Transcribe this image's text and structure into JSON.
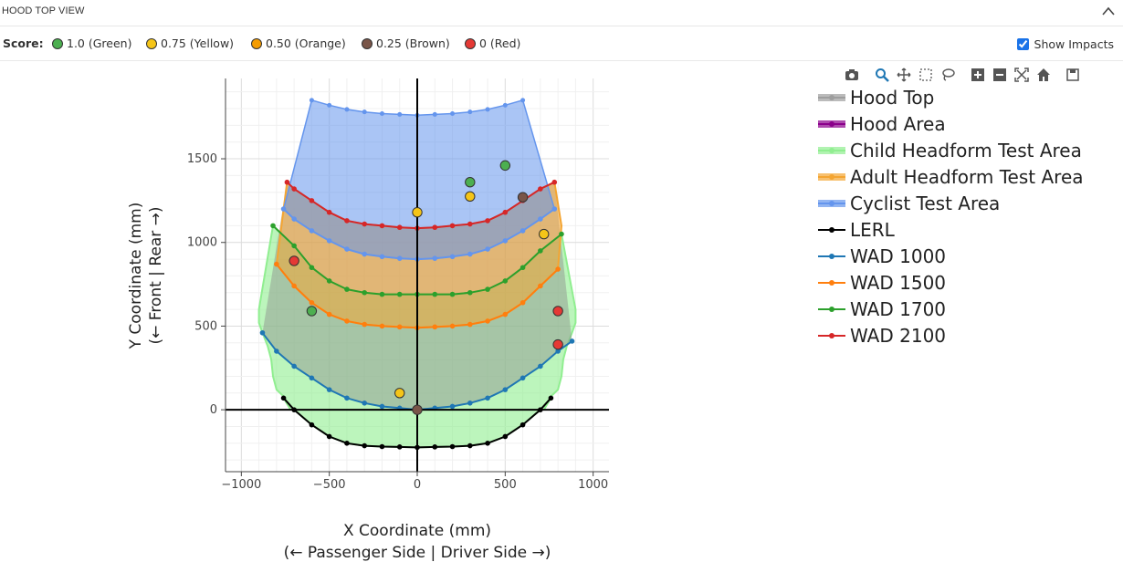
{
  "panel": {
    "title": "HOOD TOP VIEW",
    "score_label": "Score:",
    "score_items": [
      {
        "label": "1.0 (Green)",
        "color": "#4caf50"
      },
      {
        "label": "0.75 (Yellow)",
        "color": "#f5c518"
      },
      {
        "label": "0.50 (Orange)",
        "color": "#f59c00"
      },
      {
        "label": "0.25 (Brown)",
        "color": "#795548"
      },
      {
        "label": "0 (Red)",
        "color": "#e53935"
      }
    ],
    "show_impacts_label": "Show Impacts",
    "show_impacts_checked": true
  },
  "modebar_icons": [
    "camera-icon",
    "zoom-icon",
    "pan-icon",
    "box-select-icon",
    "lasso-icon",
    "zoom-in-icon",
    "zoom-out-icon",
    "autoscale-icon",
    "reset-axes-icon",
    "save-icon"
  ],
  "chart_data": {
    "type": "line",
    "xlabel": "X Coordinate (mm)",
    "xlabel2": "(← Passenger Side | Driver Side →)",
    "ylabel": "Y Coordinate (mm)",
    "ylabel2": "(← Front | Rear →)",
    "xlim": [
      -1090,
      1090
    ],
    "ylim": [
      -370,
      1980
    ],
    "x_ticks": [
      -1000,
      -500,
      0,
      500,
      1000
    ],
    "x_tick_labels": [
      "−1000",
      "−500",
      "0",
      "500",
      "1000"
    ],
    "y_ticks": [
      0,
      500,
      1000,
      1500
    ],
    "y_tick_labels": [
      "0",
      "500",
      "1000",
      "1500"
    ],
    "grid": true,
    "legend_position": "right",
    "legend": [
      {
        "name": "Hood Top",
        "color": "#9e9e9e",
        "fill": true
      },
      {
        "name": "Hood Area",
        "color": "#8b008b",
        "fill": true
      },
      {
        "name": "Child Headform Test Area",
        "color": "#90ee90",
        "fill": true
      },
      {
        "name": "Adult Headform Test Area",
        "color": "#f4a532",
        "fill": true
      },
      {
        "name": "Cyclist Test Area",
        "color": "#6495ed",
        "fill": true
      },
      {
        "name": "LERL",
        "color": "#000000",
        "fill": false
      },
      {
        "name": "WAD 1000",
        "color": "#1f77b4",
        "fill": false
      },
      {
        "name": "WAD 1500",
        "color": "#ff7f0e",
        "fill": false
      },
      {
        "name": "WAD 1700",
        "color": "#2ca02c",
        "fill": false
      },
      {
        "name": "WAD 2100",
        "color": "#d62728",
        "fill": false
      }
    ],
    "lines": {
      "LERL": {
        "color": "#000000",
        "x": [
          -760,
          -700,
          -600,
          -500,
          -400,
          -300,
          -200,
          -100,
          0,
          100,
          200,
          300,
          400,
          500,
          600,
          700,
          760
        ],
        "y": [
          70,
          0,
          -90,
          -160,
          -200,
          -215,
          -220,
          -222,
          -225,
          -222,
          -220,
          -215,
          -200,
          -160,
          -90,
          0,
          70
        ]
      },
      "WAD 1000": {
        "color": "#1f77b4",
        "x": [
          -880,
          -800,
          -700,
          -600,
          -500,
          -400,
          -300,
          -200,
          -100,
          0,
          100,
          200,
          300,
          400,
          500,
          600,
          700,
          800,
          880
        ],
        "y": [
          460,
          350,
          260,
          190,
          120,
          70,
          40,
          20,
          10,
          0,
          10,
          20,
          40,
          70,
          120,
          190,
          260,
          350,
          410
        ]
      },
      "WAD 1500": {
        "color": "#ff7f0e",
        "x": [
          -800,
          -700,
          -600,
          -500,
          -400,
          -300,
          -200,
          -100,
          0,
          100,
          200,
          300,
          400,
          500,
          600,
          700,
          800
        ],
        "y": [
          870,
          740,
          640,
          570,
          530,
          510,
          500,
          495,
          490,
          495,
          500,
          510,
          530,
          570,
          640,
          740,
          840
        ]
      },
      "WAD 1700": {
        "color": "#2ca02c",
        "x": [
          -820,
          -700,
          -600,
          -500,
          -400,
          -300,
          -200,
          -100,
          0,
          100,
          200,
          300,
          400,
          500,
          600,
          700,
          820
        ],
        "y": [
          1100,
          980,
          850,
          770,
          720,
          700,
          690,
          690,
          690,
          690,
          690,
          700,
          720,
          770,
          850,
          950,
          1050
        ]
      },
      "WAD 2100": {
        "color": "#d62728",
        "x": [
          -740,
          -700,
          -600,
          -500,
          -400,
          -300,
          -200,
          -100,
          0,
          100,
          200,
          300,
          400,
          500,
          600,
          700,
          780
        ],
        "y": [
          1360,
          1320,
          1250,
          1180,
          1130,
          1110,
          1100,
          1090,
          1085,
          1090,
          1100,
          1110,
          1130,
          1180,
          1250,
          1320,
          1360
        ]
      },
      "Cyclist Test Area": {
        "color": "#6495ed",
        "x": [
          -760,
          -700,
          -600,
          -500,
          -400,
          -300,
          -200,
          -100,
          0,
          100,
          200,
          300,
          400,
          500,
          600,
          700,
          780
        ],
        "y": [
          1200,
          1140,
          1070,
          1010,
          960,
          930,
          915,
          905,
          900,
          905,
          915,
          930,
          960,
          1010,
          1070,
          1140,
          1200
        ]
      }
    },
    "cyclist_top": {
      "x": [
        -600,
        -500,
        -400,
        -300,
        -200,
        -100,
        0,
        100,
        200,
        300,
        400,
        500,
        600
      ],
      "y": [
        1850,
        1820,
        1795,
        1780,
        1770,
        1765,
        1760,
        1765,
        1770,
        1780,
        1795,
        1820,
        1850
      ]
    },
    "hood_outline": {
      "x": [
        -900,
        -900,
        -880,
        -850,
        -830,
        -820,
        -800,
        -760,
        -740,
        -720
      ],
      "y": [
        600,
        520,
        460,
        380,
        300,
        200,
        120,
        80,
        40,
        0
      ]
    },
    "impacts": [
      {
        "x": 500,
        "y": 1460,
        "score": "1.0 (Green)",
        "color": "#4caf50"
      },
      {
        "x": 300,
        "y": 1360,
        "score": "1.0 (Green)",
        "color": "#4caf50"
      },
      {
        "x": 300,
        "y": 1275,
        "score": "0.75 (Yellow)",
        "color": "#f5c518"
      },
      {
        "x": 600,
        "y": 1270,
        "score": "0.25 (Brown)",
        "color": "#795548"
      },
      {
        "x": 0,
        "y": 1180,
        "score": "0.75 (Yellow)",
        "color": "#f5c518"
      },
      {
        "x": 720,
        "y": 1050,
        "score": "0.75 (Yellow)",
        "color": "#f5c518"
      },
      {
        "x": -700,
        "y": 890,
        "score": "0 (Red)",
        "color": "#e53935"
      },
      {
        "x": -600,
        "y": 590,
        "score": "1.0 (Green)",
        "color": "#4caf50"
      },
      {
        "x": 800,
        "y": 590,
        "score": "0 (Red)",
        "color": "#e53935"
      },
      {
        "x": 800,
        "y": 390,
        "score": "0 (Red)",
        "color": "#e53935"
      },
      {
        "x": -100,
        "y": 100,
        "score": "0.75 (Yellow)",
        "color": "#f5c518"
      },
      {
        "x": 0,
        "y": 0,
        "score": "0.25 (Brown)",
        "color": "#795548"
      }
    ]
  }
}
